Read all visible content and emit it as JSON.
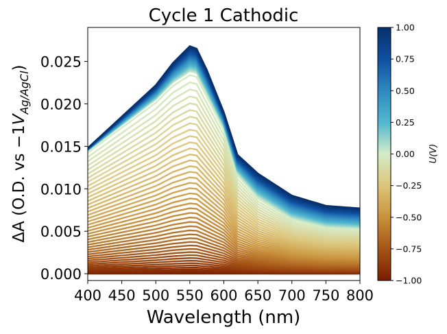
{
  "chart_data": {
    "type": "line",
    "title": "Cycle 1 Cathodic",
    "xlabel": "Wavelength (nm)",
    "ylabel": {
      "prefix": "ΔA (O.D. vs −1",
      "var": "V",
      "subscript": "Ag/AgCl",
      "suffix": ")"
    },
    "xlim": [
      400,
      800
    ],
    "ylim": [
      -0.0008,
      0.029
    ],
    "x_ticks": [
      400,
      450,
      500,
      550,
      600,
      650,
      700,
      750,
      800
    ],
    "y_ticks": [
      0.0,
      0.005,
      0.01,
      0.015,
      0.02,
      0.025
    ],
    "x_tick_labels": [
      "400",
      "450",
      "500",
      "550",
      "600",
      "650",
      "700",
      "750",
      "800"
    ],
    "y_tick_labels": [
      "0.000",
      "0.005",
      "0.010",
      "0.015",
      "0.020",
      "0.025"
    ],
    "grid": false,
    "colorbar": {
      "label": "U(V)",
      "range": [
        -1.0,
        1.0
      ],
      "ticks": [
        -1.0,
        -0.75,
        -0.5,
        -0.25,
        0.0,
        0.25,
        0.5,
        0.75,
        1.0
      ],
      "tick_labels": [
        "−1.00",
        "−0.75",
        "−0.50",
        "−0.25",
        "0.00",
        "0.25",
        "0.50",
        "0.75",
        "1.00"
      ],
      "colormap": [
        "#7a1c00",
        "#a55417",
        "#c9923c",
        "#dcc57a",
        "#d4ecc8",
        "#52b8cf",
        "#2f89c0",
        "#0f4fa0",
        "#08306b"
      ]
    },
    "series_note_values": {
      "wavelengths": [
        400,
        450,
        500,
        525,
        550,
        560,
        575,
        600,
        620,
        650,
        700,
        750,
        800
      ],
      "max_profile_at_plus1V": [
        0.0148,
        0.0185,
        0.0222,
        0.0248,
        0.0268,
        0.0265,
        0.024,
        0.019,
        0.014,
        0.0118,
        0.0092,
        0.008,
        0.0077
      ],
      "profile_at_0V": [
        0.0145,
        0.0175,
        0.0205,
        0.0225,
        0.0238,
        0.0236,
        0.0212,
        0.0172,
        0.0118,
        0.009,
        0.0065,
        0.0055,
        0.0053
      ],
      "profile_at_minus1V": [
        0.0,
        0.0,
        0.0,
        0.0,
        0.0,
        0.0,
        0.0,
        0.0,
        0.0,
        0.0,
        0.0,
        0.0,
        0.0
      ]
    }
  }
}
